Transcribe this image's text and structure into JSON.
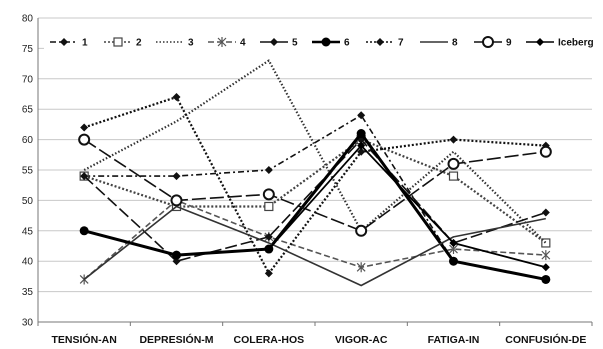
{
  "chart_data": {
    "type": "line",
    "categories": [
      "TENSIÓN-AN",
      "DEPRESIÓN-M",
      "COLERA-HOS",
      "VIGOR-AC",
      "FATIGA-IN",
      "CONFUSIÓN-DE"
    ],
    "ylim": [
      30,
      80
    ],
    "yticks": [
      30,
      35,
      40,
      45,
      50,
      55,
      60,
      65,
      70,
      75,
      80
    ],
    "grid": true,
    "legend_position": "top",
    "series": [
      {
        "name": "1",
        "values": [
          54,
          54,
          55,
          64,
          40,
          37
        ],
        "color": "#111111",
        "dash": "6,3,2,3",
        "marker": "diamond"
      },
      {
        "name": "2",
        "values": [
          54,
          49,
          49,
          60,
          54,
          43
        ],
        "color": "#444444",
        "dash": "2,2",
        "marker": "square-open"
      },
      {
        "name": "3",
        "values": [
          55,
          63,
          73,
          45,
          58,
          43
        ],
        "color": "#333333",
        "dash": "1.5,2",
        "marker": "none"
      },
      {
        "name": "4",
        "values": [
          37,
          50,
          44,
          39,
          42,
          41
        ],
        "color": "#555555",
        "dash": "6,3",
        "marker": "star"
      },
      {
        "name": "5",
        "values": [
          54,
          40,
          44,
          60,
          43,
          48
        ],
        "color": "#111111",
        "dash": "12,4",
        "marker": "diamond"
      },
      {
        "name": "6",
        "values": [
          45,
          41,
          42,
          61,
          40,
          37
        ],
        "color": "#000000",
        "dash": "",
        "marker": "circle"
      },
      {
        "name": "7",
        "values": [
          62,
          67,
          38,
          58,
          60,
          59
        ],
        "color": "#111111",
        "dash": "2,2",
        "marker": "diamond"
      },
      {
        "name": "8",
        "values": [
          37,
          49,
          43,
          36,
          44,
          47
        ],
        "color": "#333333",
        "dash": "",
        "marker": "none"
      },
      {
        "name": "9",
        "values": [
          60,
          50,
          51,
          45,
          56,
          58
        ],
        "color": "#111111",
        "dash": "14,4",
        "marker": "circle-open"
      },
      {
        "name": "Iceberg",
        "values": [
          45,
          41,
          42,
          59,
          43,
          39
        ],
        "color": "#000000",
        "dash": "",
        "marker": "diamond"
      }
    ]
  }
}
